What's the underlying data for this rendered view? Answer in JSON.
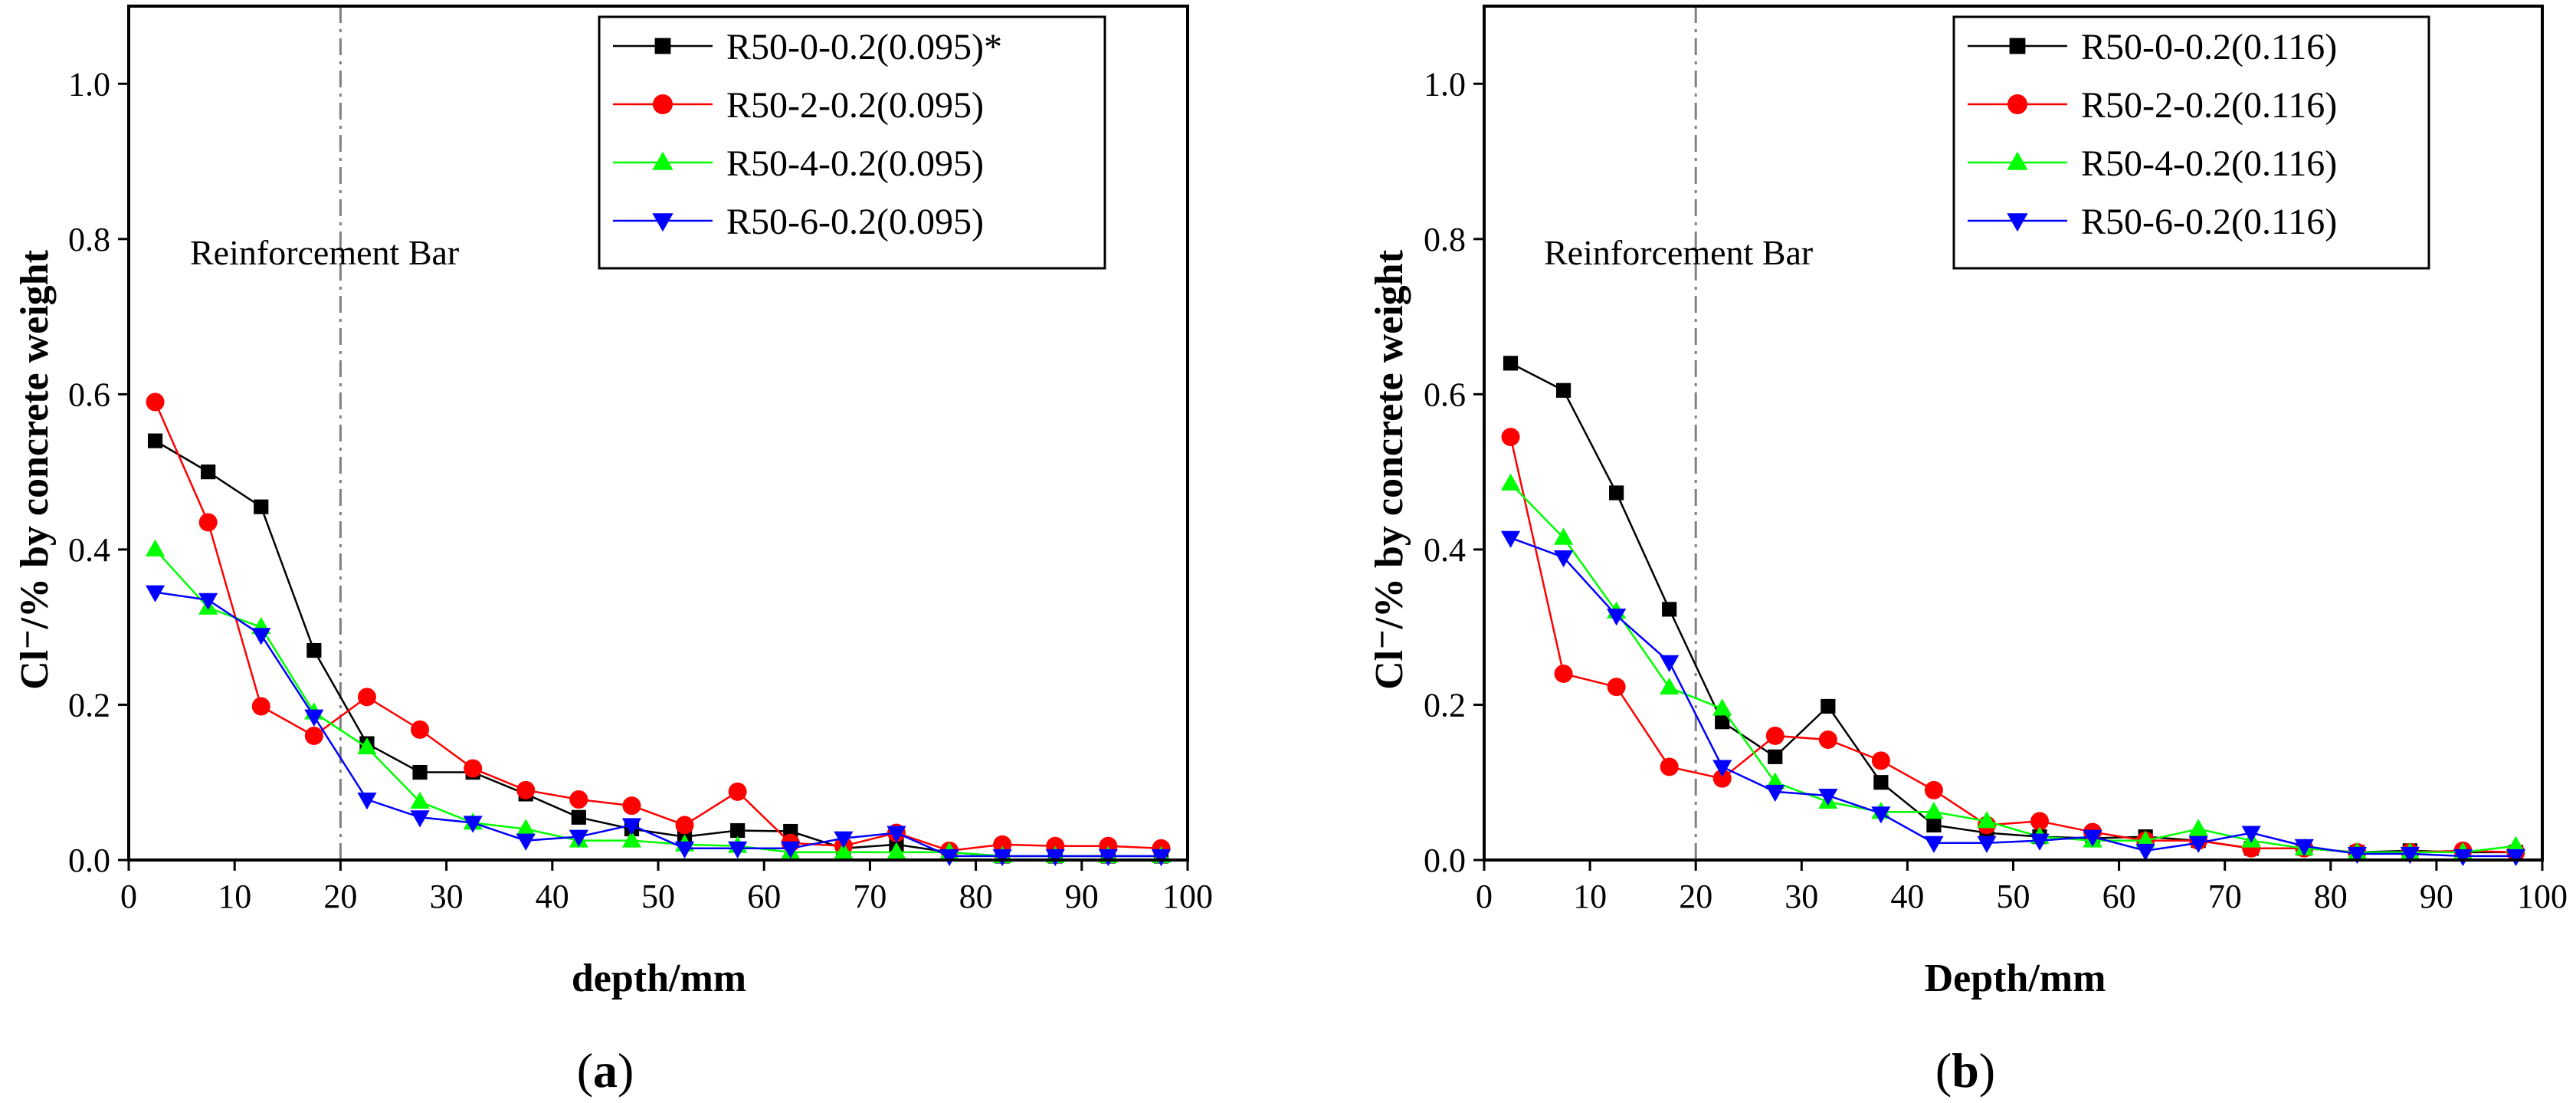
{
  "chart_data": [
    {
      "type": "line",
      "panel_label_open": "(",
      "panel_label_letter": "a",
      "panel_label_close": ")",
      "xlabel": "depth/mm",
      "ylabel": "Cl⁻/% by concrete weight",
      "xlim": [
        0,
        100
      ],
      "ylim": [
        0,
        1.1
      ],
      "xticks": [
        0,
        10,
        20,
        30,
        40,
        50,
        60,
        70,
        80,
        90,
        100
      ],
      "yticks": [
        0.0,
        0.2,
        0.4,
        0.6,
        0.8,
        1.0
      ],
      "x": [
        2.5,
        7.5,
        12.5,
        17.5,
        22.5,
        27.5,
        32.5,
        37.5,
        42.5,
        47.5,
        52.5,
        57.5,
        62.5,
        67.5,
        72.5,
        77.5,
        82.5,
        87.5,
        92.5,
        97.5
      ],
      "vline_x": 20,
      "annotation": "Reinforcement Bar",
      "legend_position": "top-right",
      "series": [
        {
          "name": "R50-0-0.2(0.095)*",
          "color": "#000000",
          "marker": "square",
          "values": [
            0.54,
            0.5,
            0.455,
            0.27,
            0.15,
            0.113,
            0.113,
            0.085,
            0.055,
            0.04,
            0.03,
            0.038,
            0.037,
            0.015,
            0.02,
            0.01,
            0.005,
            0.005,
            0.005,
            0.005
          ]
        },
        {
          "name": "R50-2-0.2(0.095)",
          "color": "#ff0000",
          "marker": "circle",
          "values": [
            0.59,
            0.435,
            0.198,
            0.16,
            0.21,
            0.168,
            0.118,
            0.09,
            0.078,
            0.07,
            0.045,
            0.088,
            0.022,
            0.018,
            0.035,
            0.012,
            0.02,
            0.018,
            0.018,
            0.015
          ]
        },
        {
          "name": "R50-4-0.2(0.095)",
          "color": "#00ff00",
          "marker": "triangle-up",
          "values": [
            0.4,
            0.325,
            0.3,
            0.19,
            0.145,
            0.075,
            0.048,
            0.04,
            0.025,
            0.025,
            0.02,
            0.018,
            0.01,
            0.01,
            0.01,
            0.01,
            0.005,
            0.005,
            0.005,
            0.005
          ]
        },
        {
          "name": "R50-6-0.2(0.095)",
          "color": "#0000ff",
          "marker": "triangle-down",
          "values": [
            0.345,
            0.335,
            0.29,
            0.185,
            0.078,
            0.055,
            0.048,
            0.025,
            0.03,
            0.045,
            0.015,
            0.015,
            0.015,
            0.028,
            0.035,
            0.005,
            0.005,
            0.005,
            0.005,
            0.005
          ]
        }
      ]
    },
    {
      "type": "line",
      "panel_label_open": "(",
      "panel_label_letter": "b",
      "panel_label_close": ")",
      "xlabel": "Depth/mm",
      "ylabel": "Cl⁻/% by concrete weight",
      "xlim": [
        0,
        100
      ],
      "ylim": [
        0,
        1.1
      ],
      "xticks": [
        0,
        10,
        20,
        30,
        40,
        50,
        60,
        70,
        80,
        90,
        100
      ],
      "yticks": [
        0.0,
        0.2,
        0.4,
        0.6,
        0.8,
        1.0
      ],
      "x": [
        2.5,
        7.5,
        12.5,
        17.5,
        22.5,
        27.5,
        32.5,
        37.5,
        42.5,
        47.5,
        52.5,
        57.5,
        62.5,
        67.5,
        72.5,
        77.5,
        82.5,
        87.5,
        92.5,
        97.5
      ],
      "vline_x": 20,
      "annotation": "Reinforcement Bar",
      "legend_position": "top-right",
      "series": [
        {
          "name": "R50-0-0.2(0.116)",
          "color": "#000000",
          "marker": "square",
          "values": [
            0.64,
            0.605,
            0.473,
            0.323,
            0.178,
            0.133,
            0.198,
            0.1,
            0.045,
            0.035,
            0.03,
            0.028,
            0.03,
            0.025,
            0.015,
            0.015,
            0.01,
            0.012,
            0.01,
            0.01
          ]
        },
        {
          "name": "R50-2-0.2(0.116)",
          "color": "#ff0000",
          "marker": "circle",
          "values": [
            0.545,
            0.24,
            0.223,
            0.12,
            0.105,
            0.16,
            0.155,
            0.128,
            0.09,
            0.045,
            0.05,
            0.036,
            0.025,
            0.025,
            0.015,
            0.015,
            0.01,
            0.01,
            0.012,
            0.01
          ]
        },
        {
          "name": "R50-4-0.2(0.116)",
          "color": "#00ff00",
          "marker": "triangle-up",
          "values": [
            0.485,
            0.415,
            0.32,
            0.222,
            0.195,
            0.1,
            0.075,
            0.062,
            0.062,
            0.05,
            0.03,
            0.025,
            0.025,
            0.04,
            0.025,
            0.015,
            0.01,
            0.01,
            0.01,
            0.018
          ]
        },
        {
          "name": "R50-6-0.2(0.116)",
          "color": "#0000ff",
          "marker": "triangle-down",
          "values": [
            0.415,
            0.39,
            0.315,
            0.255,
            0.12,
            0.088,
            0.083,
            0.06,
            0.022,
            0.022,
            0.025,
            0.03,
            0.012,
            0.022,
            0.035,
            0.018,
            0.008,
            0.008,
            0.005,
            0.005
          ]
        }
      ]
    }
  ]
}
